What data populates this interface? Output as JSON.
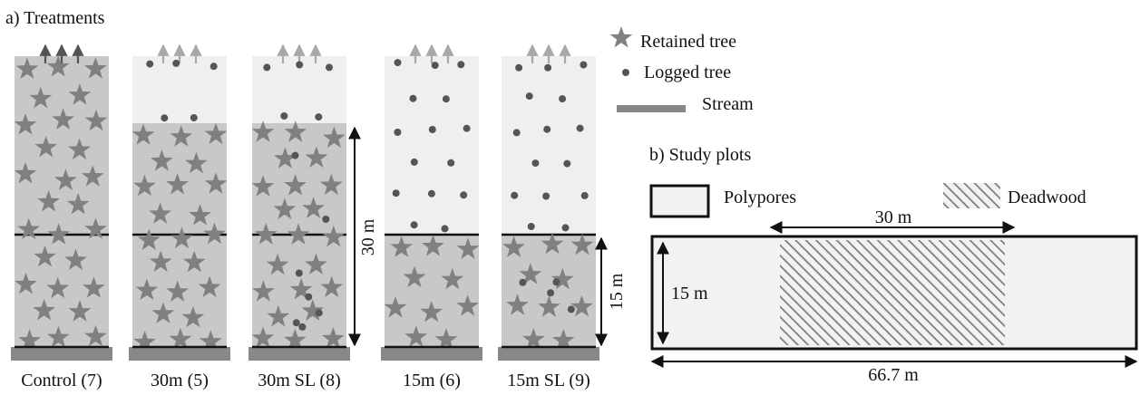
{
  "panel_a": {
    "title": "a) Treatments",
    "treatments": [
      {
        "label": "Control (7)",
        "buffer_m": 30,
        "selective_logging": false,
        "control": true
      },
      {
        "label": "30m (5)",
        "buffer_m": 30,
        "selective_logging": false,
        "control": false
      },
      {
        "label": "30m SL (8)",
        "buffer_m": 30,
        "selective_logging": true,
        "control": false
      },
      {
        "label": "15m (6)",
        "buffer_m": 15,
        "selective_logging": false,
        "control": false
      },
      {
        "label": "15m SL (9)",
        "buffer_m": 15,
        "selective_logging": true,
        "control": false
      }
    ],
    "dim_30": "30 m",
    "dim_15": "15 m"
  },
  "legend": {
    "retained": "Retained tree",
    "logged": "Logged tree",
    "stream": "Stream"
  },
  "panel_b": {
    "title": "b) Study plots",
    "polypores_label": "Polypores",
    "deadwood_label": "Deadwood",
    "dim_width_deadwood": "30 m",
    "dim_height": "15 m",
    "dim_total": "66.7 m"
  },
  "colors": {
    "retained_zone": "#c8c8c8",
    "logged_zone": "#efefef",
    "star": "#808080",
    "dot": "#555555",
    "stream": "#888888",
    "arrow": "#a8a8a8",
    "hatch": "#7a7a7a"
  }
}
